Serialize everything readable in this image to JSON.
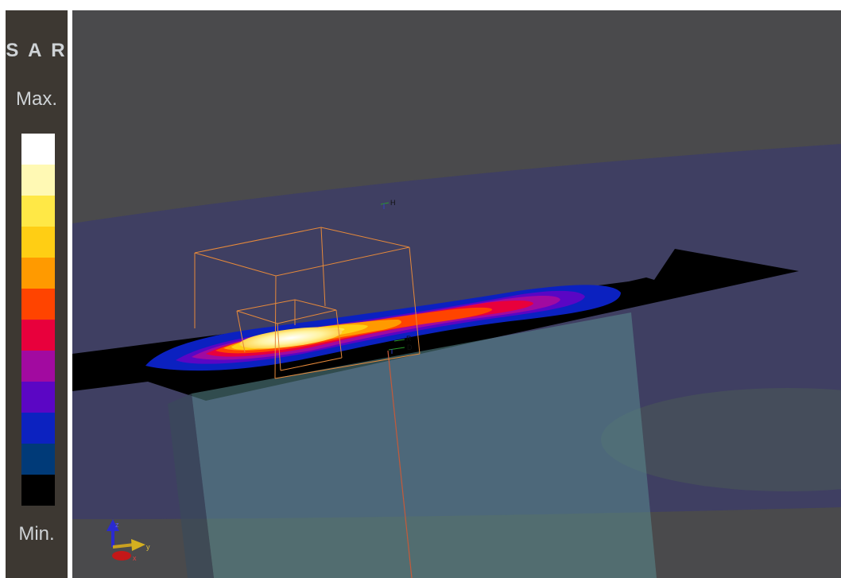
{
  "legend": {
    "title": "S A R",
    "max_label": "Max.",
    "min_label": "Min.",
    "colors": [
      "#ffffff",
      "#fff9b4",
      "#ffe846",
      "#ffce14",
      "#ff9a00",
      "#ff4400",
      "#e8003c",
      "#a20aa0",
      "#5b06c4",
      "#0c22c0",
      "#003a78",
      "#000000"
    ]
  },
  "viewport": {
    "background": "#4a4a4c",
    "markers": {
      "h": "H",
      "r": "R",
      "d": "D"
    },
    "orientation_axes": {
      "z": "z",
      "y": "y",
      "x": "x"
    },
    "colors": {
      "plane": "#3e3e63",
      "box_outline": "#e6893a",
      "phantom": "#5a8a8e",
      "slab": "#000000"
    }
  }
}
